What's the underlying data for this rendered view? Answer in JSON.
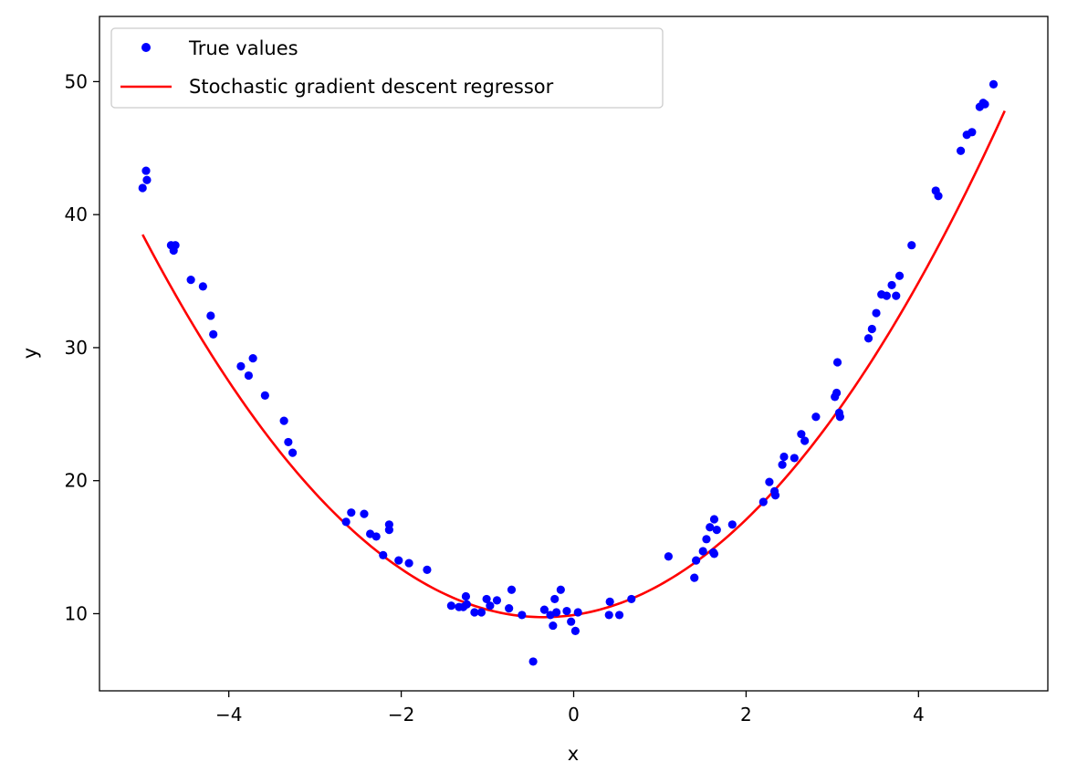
{
  "chart_data": {
    "type": "scatter",
    "xlabel": "x",
    "ylabel": "y",
    "xlim": [
      -5.5,
      5.5
    ],
    "ylim": [
      4.2,
      54.9
    ],
    "xticks": [
      {
        "value": -4,
        "label": "−4"
      },
      {
        "value": -2,
        "label": "−2"
      },
      {
        "value": 0,
        "label": "0"
      },
      {
        "value": 2,
        "label": "2"
      },
      {
        "value": 4,
        "label": "4"
      }
    ],
    "yticks": [
      {
        "value": 10,
        "label": "10"
      },
      {
        "value": 20,
        "label": "20"
      },
      {
        "value": 30,
        "label": "30"
      },
      {
        "value": 40,
        "label": "40"
      },
      {
        "value": 50,
        "label": "50"
      }
    ],
    "grid": false,
    "legend_position": "top-left",
    "series": [
      {
        "name": "True values",
        "kind": "points",
        "color": "#0000ff",
        "points": [
          [
            -5.0,
            42.0
          ],
          [
            -4.96,
            43.3
          ],
          [
            -4.95,
            42.6
          ],
          [
            -4.67,
            37.7
          ],
          [
            -4.64,
            37.3
          ],
          [
            -4.62,
            37.7
          ],
          [
            -4.44,
            35.1
          ],
          [
            -4.3,
            34.6
          ],
          [
            -4.21,
            32.4
          ],
          [
            -4.18,
            31.0
          ],
          [
            -3.86,
            28.6
          ],
          [
            -3.77,
            27.9
          ],
          [
            -3.72,
            29.2
          ],
          [
            -3.58,
            26.4
          ],
          [
            -3.36,
            24.5
          ],
          [
            -3.31,
            22.9
          ],
          [
            -3.26,
            22.1
          ],
          [
            -2.64,
            16.9
          ],
          [
            -2.58,
            17.6
          ],
          [
            -2.43,
            17.5
          ],
          [
            -2.36,
            16.0
          ],
          [
            -2.29,
            15.8
          ],
          [
            -2.21,
            14.4
          ],
          [
            -2.14,
            16.7
          ],
          [
            -2.14,
            16.3
          ],
          [
            -2.03,
            14.0
          ],
          [
            -1.91,
            13.8
          ],
          [
            -1.7,
            13.3
          ],
          [
            -1.42,
            10.6
          ],
          [
            -1.33,
            10.5
          ],
          [
            -1.28,
            10.5
          ],
          [
            -1.25,
            11.3
          ],
          [
            -1.24,
            10.7
          ],
          [
            -1.15,
            10.1
          ],
          [
            -1.07,
            10.1
          ],
          [
            -1.01,
            11.1
          ],
          [
            -0.97,
            10.6
          ],
          [
            -0.89,
            11.0
          ],
          [
            -0.75,
            10.4
          ],
          [
            -0.72,
            11.8
          ],
          [
            -0.6,
            9.9
          ],
          [
            -0.47,
            6.4
          ],
          [
            -0.34,
            10.3
          ],
          [
            -0.27,
            9.9
          ],
          [
            -0.24,
            9.1
          ],
          [
            -0.22,
            11.1
          ],
          [
            -0.2,
            10.1
          ],
          [
            -0.15,
            11.8
          ],
          [
            -0.08,
            10.2
          ],
          [
            -0.03,
            9.4
          ],
          [
            0.02,
            8.7
          ],
          [
            0.05,
            10.1
          ],
          [
            0.41,
            9.9
          ],
          [
            0.42,
            10.9
          ],
          [
            0.53,
            9.9
          ],
          [
            0.67,
            11.1
          ],
          [
            1.1,
            14.3
          ],
          [
            1.4,
            12.7
          ],
          [
            1.42,
            14.0
          ],
          [
            1.5,
            14.7
          ],
          [
            1.54,
            15.6
          ],
          [
            1.58,
            16.5
          ],
          [
            1.62,
            14.6
          ],
          [
            1.63,
            14.5
          ],
          [
            1.63,
            17.1
          ],
          [
            1.66,
            16.3
          ],
          [
            1.84,
            16.7
          ],
          [
            2.2,
            18.4
          ],
          [
            2.27,
            19.9
          ],
          [
            2.33,
            19.2
          ],
          [
            2.34,
            18.9
          ],
          [
            2.42,
            21.2
          ],
          [
            2.44,
            21.8
          ],
          [
            2.56,
            21.7
          ],
          [
            2.64,
            23.5
          ],
          [
            2.68,
            23.0
          ],
          [
            2.81,
            24.8
          ],
          [
            3.03,
            26.3
          ],
          [
            3.05,
            26.6
          ],
          [
            3.06,
            28.9
          ],
          [
            3.08,
            25.1
          ],
          [
            3.09,
            24.8
          ],
          [
            3.42,
            30.7
          ],
          [
            3.46,
            31.4
          ],
          [
            3.51,
            32.6
          ],
          [
            3.57,
            34.0
          ],
          [
            3.63,
            33.9
          ],
          [
            3.69,
            34.7
          ],
          [
            3.74,
            33.9
          ],
          [
            3.78,
            35.4
          ],
          [
            3.92,
            37.7
          ],
          [
            4.2,
            41.8
          ],
          [
            4.23,
            41.4
          ],
          [
            4.49,
            44.8
          ],
          [
            4.56,
            46.0
          ],
          [
            4.62,
            46.2
          ],
          [
            4.71,
            48.1
          ],
          [
            4.75,
            48.4
          ],
          [
            4.77,
            48.3
          ],
          [
            4.87,
            49.8
          ]
        ]
      },
      {
        "name": "Stochastic gradient descent regressor",
        "kind": "line",
        "color": "#ff0000",
        "quadratic": {
          "a": 1.33,
          "b": 0.93,
          "c": 9.9
        },
        "x_range": [
          -5.0,
          5.0
        ]
      }
    ]
  }
}
